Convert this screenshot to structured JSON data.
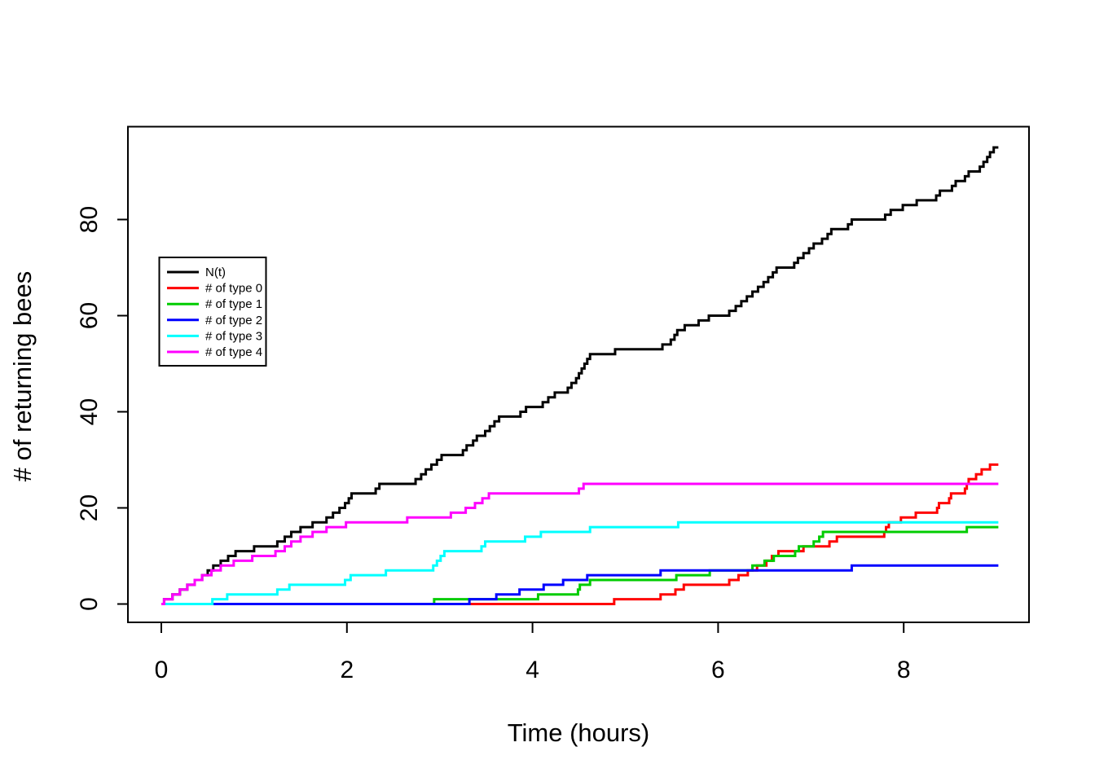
{
  "chart_data": {
    "type": "line",
    "step": true,
    "title": "",
    "xlabel": "Time (hours)",
    "ylabel": "# of returning bees",
    "x_ticks": [
      0,
      2,
      4,
      6,
      8
    ],
    "y_ticks": [
      0,
      20,
      40,
      60,
      80
    ],
    "xlim": [
      -0.36,
      9.37
    ],
    "ylim": [
      -3.8,
      99.3
    ],
    "x_end": 9.02,
    "grid": false,
    "legend_position": "left-middle",
    "series": [
      {
        "name": "N(t)",
        "color": "#000000",
        "points": [
          [
            0,
            0
          ],
          [
            0.03,
            1
          ],
          [
            0.12,
            2
          ],
          [
            0.2,
            3
          ],
          [
            0.28,
            4
          ],
          [
            0.36,
            5
          ],
          [
            0.44,
            6
          ],
          [
            0.5,
            7
          ],
          [
            0.56,
            8
          ],
          [
            0.64,
            9
          ],
          [
            0.72,
            10
          ],
          [
            0.8,
            11
          ],
          [
            1.0,
            12
          ],
          [
            1.25,
            13
          ],
          [
            1.33,
            14
          ],
          [
            1.4,
            15
          ],
          [
            1.5,
            16
          ],
          [
            1.63,
            17
          ],
          [
            1.78,
            18
          ],
          [
            1.85,
            19
          ],
          [
            1.92,
            20
          ],
          [
            1.98,
            21
          ],
          [
            2.02,
            22
          ],
          [
            2.05,
            23
          ],
          [
            2.31,
            24
          ],
          [
            2.35,
            25
          ],
          [
            2.74,
            26
          ],
          [
            2.8,
            27
          ],
          [
            2.85,
            28
          ],
          [
            2.91,
            29
          ],
          [
            2.97,
            30
          ],
          [
            3.02,
            31
          ],
          [
            3.25,
            32
          ],
          [
            3.29,
            33
          ],
          [
            3.36,
            34
          ],
          [
            3.4,
            35
          ],
          [
            3.49,
            36
          ],
          [
            3.54,
            37
          ],
          [
            3.59,
            38
          ],
          [
            3.64,
            39
          ],
          [
            3.87,
            40
          ],
          [
            3.93,
            41
          ],
          [
            4.11,
            42
          ],
          [
            4.17,
            43
          ],
          [
            4.24,
            44
          ],
          [
            4.38,
            45
          ],
          [
            4.42,
            46
          ],
          [
            4.47,
            47
          ],
          [
            4.5,
            48
          ],
          [
            4.53,
            49
          ],
          [
            4.56,
            50
          ],
          [
            4.59,
            51
          ],
          [
            4.62,
            52
          ],
          [
            4.89,
            53
          ],
          [
            5.4,
            54
          ],
          [
            5.49,
            55
          ],
          [
            5.53,
            56
          ],
          [
            5.56,
            57
          ],
          [
            5.64,
            58
          ],
          [
            5.79,
            59
          ],
          [
            5.9,
            60
          ],
          [
            6.12,
            61
          ],
          [
            6.19,
            62
          ],
          [
            6.25,
            63
          ],
          [
            6.31,
            64
          ],
          [
            6.37,
            65
          ],
          [
            6.43,
            66
          ],
          [
            6.49,
            67
          ],
          [
            6.54,
            68
          ],
          [
            6.59,
            69
          ],
          [
            6.63,
            70
          ],
          [
            6.82,
            71
          ],
          [
            6.86,
            72
          ],
          [
            6.92,
            73
          ],
          [
            6.98,
            74
          ],
          [
            7.03,
            75
          ],
          [
            7.12,
            76
          ],
          [
            7.18,
            77
          ],
          [
            7.22,
            78
          ],
          [
            7.4,
            79
          ],
          [
            7.44,
            80
          ],
          [
            7.8,
            81
          ],
          [
            7.86,
            82
          ],
          [
            7.99,
            83
          ],
          [
            8.14,
            84
          ],
          [
            8.35,
            85
          ],
          [
            8.39,
            86
          ],
          [
            8.52,
            87
          ],
          [
            8.56,
            88
          ],
          [
            8.66,
            89
          ],
          [
            8.7,
            90
          ],
          [
            8.82,
            91
          ],
          [
            8.86,
            92
          ],
          [
            8.9,
            93
          ],
          [
            8.93,
            94
          ],
          [
            8.97,
            95
          ]
        ]
      },
      {
        "name": "# of type 0",
        "color": "#FF0000",
        "points": [
          [
            0,
            0
          ],
          [
            4.88,
            1
          ],
          [
            5.38,
            2
          ],
          [
            5.54,
            3
          ],
          [
            5.63,
            4
          ],
          [
            6.12,
            5
          ],
          [
            6.22,
            6
          ],
          [
            6.32,
            7
          ],
          [
            6.42,
            8
          ],
          [
            6.52,
            9
          ],
          [
            6.58,
            10
          ],
          [
            6.65,
            11
          ],
          [
            6.92,
            12
          ],
          [
            7.2,
            13
          ],
          [
            7.28,
            14
          ],
          [
            7.79,
            15
          ],
          [
            7.81,
            16
          ],
          [
            7.84,
            17
          ],
          [
            7.97,
            18
          ],
          [
            8.13,
            19
          ],
          [
            8.36,
            20
          ],
          [
            8.38,
            21
          ],
          [
            8.49,
            22
          ],
          [
            8.51,
            23
          ],
          [
            8.66,
            24
          ],
          [
            8.68,
            25
          ],
          [
            8.7,
            26
          ],
          [
            8.78,
            27
          ],
          [
            8.84,
            28
          ],
          [
            8.93,
            29
          ]
        ]
      },
      {
        "name": "# of type 1",
        "color": "#00CC00",
        "points": [
          [
            0,
            0
          ],
          [
            2.94,
            1
          ],
          [
            4.06,
            2
          ],
          [
            4.49,
            3
          ],
          [
            4.51,
            4
          ],
          [
            4.62,
            5
          ],
          [
            5.55,
            6
          ],
          [
            5.91,
            7
          ],
          [
            6.37,
            8
          ],
          [
            6.5,
            9
          ],
          [
            6.6,
            10
          ],
          [
            6.83,
            11
          ],
          [
            6.87,
            12
          ],
          [
            7.03,
            13
          ],
          [
            7.09,
            14
          ],
          [
            7.13,
            15
          ],
          [
            8.68,
            16
          ]
        ]
      },
      {
        "name": "# of type 2",
        "color": "#0000FF",
        "points": [
          [
            0,
            0
          ],
          [
            3.32,
            1
          ],
          [
            3.61,
            2
          ],
          [
            3.86,
            3
          ],
          [
            4.12,
            4
          ],
          [
            4.33,
            5
          ],
          [
            4.59,
            6
          ],
          [
            5.38,
            7
          ],
          [
            7.44,
            8
          ]
        ]
      },
      {
        "name": "# of type 3",
        "color": "#00FFFF",
        "points": [
          [
            0,
            0
          ],
          [
            0.55,
            1
          ],
          [
            0.71,
            2
          ],
          [
            1.25,
            3
          ],
          [
            1.38,
            4
          ],
          [
            1.98,
            5
          ],
          [
            2.04,
            6
          ],
          [
            2.42,
            7
          ],
          [
            2.93,
            8
          ],
          [
            2.97,
            9
          ],
          [
            3.01,
            10
          ],
          [
            3.05,
            11
          ],
          [
            3.45,
            12
          ],
          [
            3.49,
            13
          ],
          [
            3.92,
            14
          ],
          [
            4.09,
            15
          ],
          [
            4.62,
            16
          ],
          [
            5.57,
            17
          ]
        ]
      },
      {
        "name": "# of type 4",
        "color": "#FF00FF",
        "points": [
          [
            0,
            0
          ],
          [
            0.03,
            1
          ],
          [
            0.12,
            2
          ],
          [
            0.2,
            3
          ],
          [
            0.28,
            4
          ],
          [
            0.36,
            5
          ],
          [
            0.44,
            6
          ],
          [
            0.54,
            7
          ],
          [
            0.64,
            8
          ],
          [
            0.78,
            9
          ],
          [
            0.98,
            10
          ],
          [
            1.23,
            11
          ],
          [
            1.33,
            12
          ],
          [
            1.4,
            13
          ],
          [
            1.5,
            14
          ],
          [
            1.63,
            15
          ],
          [
            1.78,
            16
          ],
          [
            1.99,
            17
          ],
          [
            2.65,
            18
          ],
          [
            3.12,
            19
          ],
          [
            3.28,
            20
          ],
          [
            3.38,
            21
          ],
          [
            3.46,
            22
          ],
          [
            3.53,
            23
          ],
          [
            4.5,
            24
          ],
          [
            4.55,
            25
          ]
        ]
      }
    ]
  }
}
